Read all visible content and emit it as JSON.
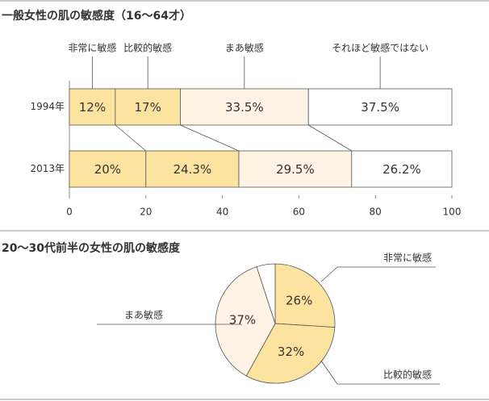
{
  "chart_data": [
    {
      "type": "stacked-bar-horizontal",
      "title": "一般女性の肌の敏感度（16～64才）",
      "categories": [
        "1994年",
        "2013年"
      ],
      "series": [
        {
          "name": "非常に敏感",
          "color": "#fde3a0",
          "values": [
            12,
            20
          ],
          "value_labels": [
            "12%",
            "20%"
          ]
        },
        {
          "name": "比較的敏感",
          "color": "#fde3a0",
          "values": [
            17,
            24.3
          ],
          "value_labels": [
            "17%",
            "24.3%"
          ]
        },
        {
          "name": "まあ敏感",
          "color": "#fef3e4",
          "values": [
            33.5,
            29.5
          ],
          "value_labels": [
            "33.5%",
            "29.5%"
          ]
        },
        {
          "name": "それほど敏感ではない",
          "color": "#ffffff",
          "values": [
            37.5,
            26.2
          ],
          "value_labels": [
            "37.5%",
            "26.2%"
          ]
        }
      ],
      "xlim": [
        0,
        100
      ],
      "xticks": [
        0,
        20,
        40,
        60,
        80,
        100
      ]
    },
    {
      "type": "pie",
      "title": "20～30代前半の女性の肌の敏感度",
      "categories": [
        "非常に敏感",
        "比較的敏感",
        "まあ敏感",
        null
      ],
      "values": [
        26,
        32,
        37,
        5
      ],
      "value_labels": [
        "26%",
        "32%",
        "37%",
        null
      ],
      "colors": [
        "#fde3a0",
        "#fde3a0",
        "#fef3e4",
        "#ffffff"
      ]
    }
  ]
}
